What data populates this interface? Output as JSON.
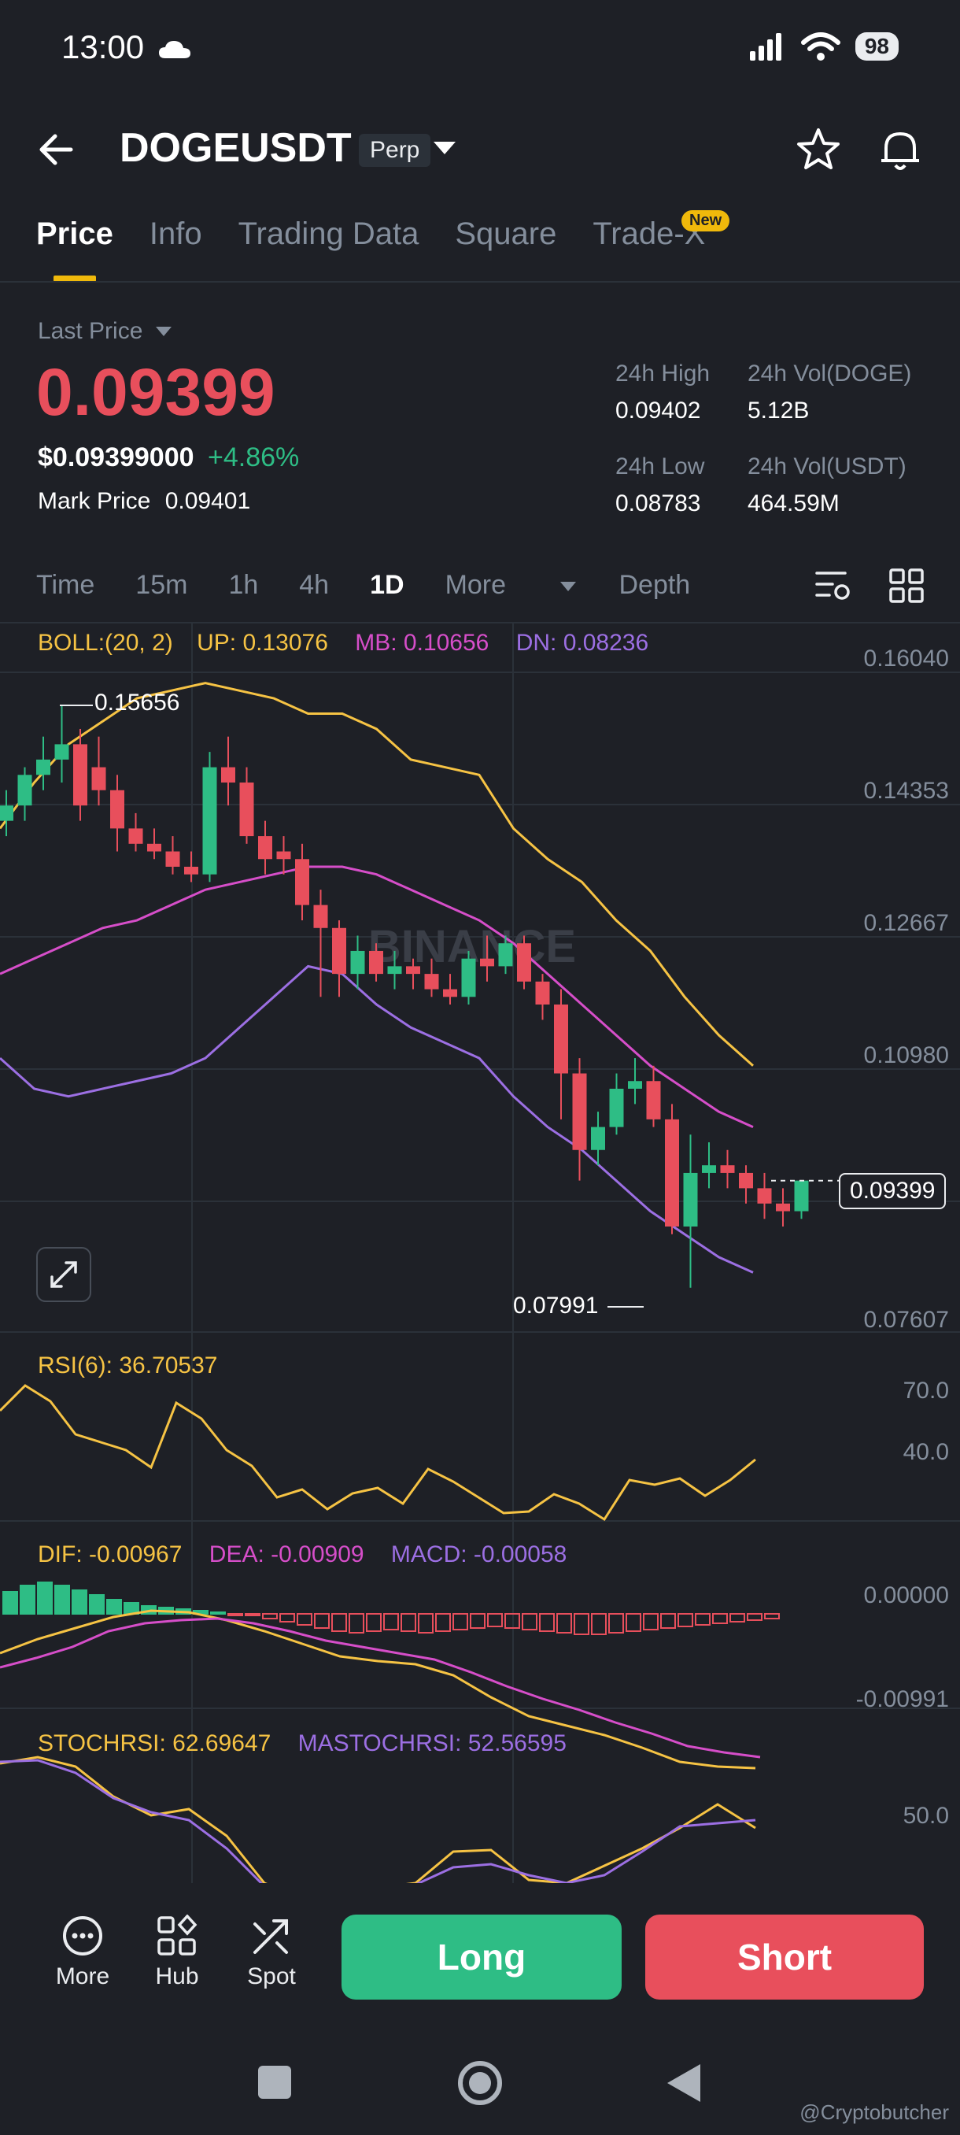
{
  "status_bar": {
    "time": "13:00",
    "battery": "98"
  },
  "header": {
    "symbol": "DOGEUSDT",
    "badge": "Perp"
  },
  "tabs": [
    {
      "label": "Price"
    },
    {
      "label": "Info"
    },
    {
      "label": "Trading Data"
    },
    {
      "label": "Square"
    },
    {
      "label": "Trade-X"
    }
  ],
  "new_badge": "New",
  "price": {
    "last_price_label": "Last Price",
    "last_price": "0.09399",
    "usd_price": "$0.09399000",
    "change": "+4.86%",
    "mark_price_label": "Mark Price",
    "mark_price": "0.09401",
    "stats": {
      "high_label": "24h High",
      "high": "0.09402",
      "vol_doge_label": "24h Vol(DOGE)",
      "vol_doge": "5.12B",
      "low_label": "24h Low",
      "low": "0.08783",
      "vol_usdt_label": "24h Vol(USDT)",
      "vol_usdt": "464.59M"
    }
  },
  "intervals": {
    "items": [
      "Time",
      "15m",
      "1h",
      "4h",
      "1D"
    ],
    "active": "1D",
    "more": "More",
    "depth": "Depth"
  },
  "indicators": {
    "boll": {
      "label": "BOLL:(20, 2)",
      "up": "UP: 0.13076",
      "mb": "MB: 0.10656",
      "dn": "DN: 0.08236"
    },
    "rsi": {
      "label": "RSI(6): 36.70537"
    },
    "macd": {
      "dif": "DIF: -0.00967",
      "dea": "DEA: -0.00909",
      "macd": "MACD: -0.00058"
    },
    "stochrsi": {
      "label": "STOCHRSI: 62.69647",
      "ma": "MASTOCHRSI: 52.56595"
    }
  },
  "axes": {
    "price": [
      "0.16040",
      "0.14353",
      "0.12667",
      "0.10980",
      "0.07607"
    ],
    "rsi": [
      "70.0",
      "40.0"
    ],
    "macd": [
      "0.00000",
      "-0.00991"
    ],
    "stoch": [
      "50.0"
    ]
  },
  "chart_data": {
    "type": "candlestick",
    "current_price": "0.09399",
    "high_marker": "0.15656",
    "low_marker": "0.07991",
    "watermark": "BINANCE",
    "candles": [
      {
        "o": 0.141,
        "h": 0.145,
        "l": 0.139,
        "c": 0.143
      },
      {
        "o": 0.143,
        "h": 0.148,
        "l": 0.141,
        "c": 0.147
      },
      {
        "o": 0.147,
        "h": 0.152,
        "l": 0.145,
        "c": 0.149
      },
      {
        "o": 0.149,
        "h": 0.156,
        "l": 0.146,
        "c": 0.151
      },
      {
        "o": 0.151,
        "h": 0.153,
        "l": 0.141,
        "c": 0.143
      },
      {
        "o": 0.148,
        "h": 0.152,
        "l": 0.143,
        "c": 0.145
      },
      {
        "o": 0.145,
        "h": 0.147,
        "l": 0.137,
        "c": 0.14
      },
      {
        "o": 0.14,
        "h": 0.142,
        "l": 0.137,
        "c": 0.138
      },
      {
        "o": 0.138,
        "h": 0.14,
        "l": 0.136,
        "c": 0.137
      },
      {
        "o": 0.137,
        "h": 0.139,
        "l": 0.134,
        "c": 0.135
      },
      {
        "o": 0.135,
        "h": 0.137,
        "l": 0.133,
        "c": 0.134
      },
      {
        "o": 0.134,
        "h": 0.15,
        "l": 0.133,
        "c": 0.148
      },
      {
        "o": 0.148,
        "h": 0.152,
        "l": 0.143,
        "c": 0.146
      },
      {
        "o": 0.146,
        "h": 0.148,
        "l": 0.138,
        "c": 0.139
      },
      {
        "o": 0.139,
        "h": 0.141,
        "l": 0.134,
        "c": 0.136
      },
      {
        "o": 0.137,
        "h": 0.139,
        "l": 0.134,
        "c": 0.136
      },
      {
        "o": 0.136,
        "h": 0.138,
        "l": 0.128,
        "c": 0.13
      },
      {
        "o": 0.13,
        "h": 0.132,
        "l": 0.118,
        "c": 0.127
      },
      {
        "o": 0.127,
        "h": 0.128,
        "l": 0.118,
        "c": 0.121
      },
      {
        "o": 0.121,
        "h": 0.126,
        "l": 0.119,
        "c": 0.124
      },
      {
        "o": 0.124,
        "h": 0.125,
        "l": 0.12,
        "c": 0.121
      },
      {
        "o": 0.121,
        "h": 0.124,
        "l": 0.119,
        "c": 0.122
      },
      {
        "o": 0.122,
        "h": 0.123,
        "l": 0.119,
        "c": 0.121
      },
      {
        "o": 0.121,
        "h": 0.123,
        "l": 0.118,
        "c": 0.119
      },
      {
        "o": 0.119,
        "h": 0.121,
        "l": 0.117,
        "c": 0.118
      },
      {
        "o": 0.118,
        "h": 0.124,
        "l": 0.117,
        "c": 0.123
      },
      {
        "o": 0.123,
        "h": 0.126,
        "l": 0.12,
        "c": 0.122
      },
      {
        "o": 0.122,
        "h": 0.126,
        "l": 0.121,
        "c": 0.125
      },
      {
        "o": 0.125,
        "h": 0.126,
        "l": 0.119,
        "c": 0.12
      },
      {
        "o": 0.12,
        "h": 0.121,
        "l": 0.115,
        "c": 0.117
      },
      {
        "o": 0.117,
        "h": 0.119,
        "l": 0.102,
        "c": 0.108
      },
      {
        "o": 0.108,
        "h": 0.11,
        "l": 0.094,
        "c": 0.098
      },
      {
        "o": 0.098,
        "h": 0.103,
        "l": 0.096,
        "c": 0.101
      },
      {
        "o": 0.101,
        "h": 0.108,
        "l": 0.1,
        "c": 0.106
      },
      {
        "o": 0.106,
        "h": 0.11,
        "l": 0.104,
        "c": 0.107
      },
      {
        "o": 0.107,
        "h": 0.109,
        "l": 0.101,
        "c": 0.102
      },
      {
        "o": 0.102,
        "h": 0.104,
        "l": 0.087,
        "c": 0.088
      },
      {
        "o": 0.088,
        "h": 0.1,
        "l": 0.08,
        "c": 0.095
      },
      {
        "o": 0.095,
        "h": 0.099,
        "l": 0.093,
        "c": 0.096
      },
      {
        "o": 0.096,
        "h": 0.098,
        "l": 0.093,
        "c": 0.095
      },
      {
        "o": 0.095,
        "h": 0.096,
        "l": 0.091,
        "c": 0.093
      },
      {
        "o": 0.093,
        "h": 0.095,
        "l": 0.089,
        "c": 0.091
      },
      {
        "o": 0.091,
        "h": 0.093,
        "l": 0.088,
        "c": 0.09
      },
      {
        "o": 0.09,
        "h": 0.094,
        "l": 0.089,
        "c": 0.094
      }
    ],
    "boll_up": [
      0.14,
      0.146,
      0.151,
      0.154,
      0.157,
      0.158,
      0.159,
      0.158,
      0.157,
      0.155,
      0.155,
      0.153,
      0.149,
      0.148,
      0.147,
      0.14,
      0.136,
      0.133,
      0.128,
      0.124,
      0.118,
      0.113,
      0.109
    ],
    "boll_mid": [
      0.121,
      0.123,
      0.125,
      0.127,
      0.128,
      0.13,
      0.132,
      0.133,
      0.134,
      0.135,
      0.135,
      0.134,
      0.132,
      0.13,
      0.128,
      0.125,
      0.121,
      0.117,
      0.113,
      0.109,
      0.106,
      0.103,
      0.101
    ],
    "boll_dn": [
      0.11,
      0.106,
      0.105,
      0.106,
      0.107,
      0.108,
      0.11,
      0.114,
      0.118,
      0.122,
      0.121,
      0.117,
      0.114,
      0.112,
      0.11,
      0.105,
      0.101,
      0.098,
      0.094,
      0.09,
      0.087,
      0.084,
      0.082
    ]
  },
  "bottom_nav": {
    "more": "More",
    "hub": "Hub",
    "spot": "Spot"
  },
  "actions": {
    "long": "Long",
    "short": "Short"
  },
  "credit": "@Cryptobutcher"
}
